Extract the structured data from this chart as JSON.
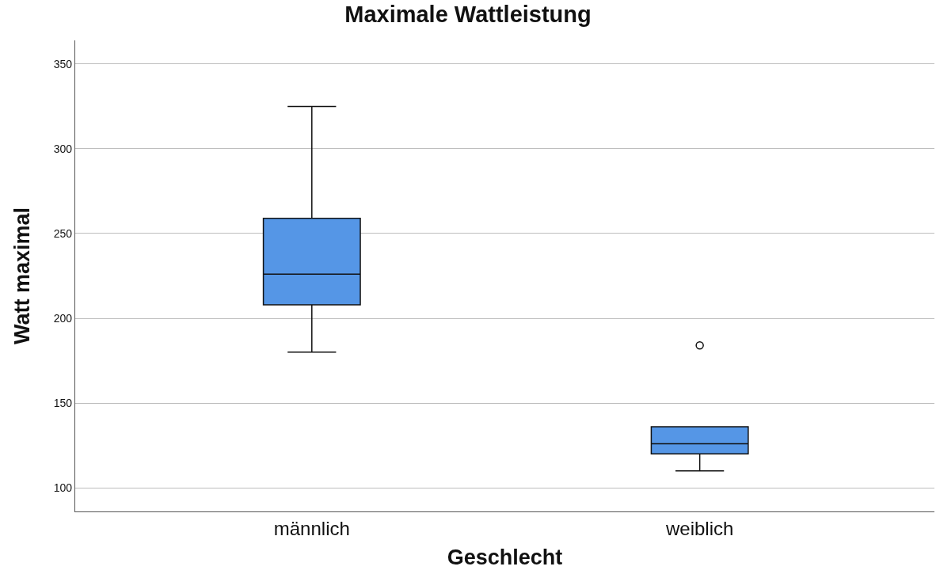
{
  "chart_data": {
    "type": "box",
    "title": "Maximale Wattleistung",
    "xlabel": "Geschlecht",
    "ylabel": "Watt maximal",
    "categories": [
      "männlich",
      "weiblich"
    ],
    "series": [
      {
        "color": "#5596e6",
        "boxes": [
          {
            "low": 180,
            "q1": 208,
            "median": 226,
            "q3": 259,
            "high": 325
          },
          {
            "low": 110,
            "q1": 120,
            "median": 126,
            "q3": 136,
            "high": 136,
            "outliers": [
              184
            ]
          }
        ]
      }
    ],
    "ylim": [
      86,
      364
    ],
    "yticks": [
      100,
      150,
      200,
      250,
      300,
      350
    ],
    "grid": "y"
  }
}
